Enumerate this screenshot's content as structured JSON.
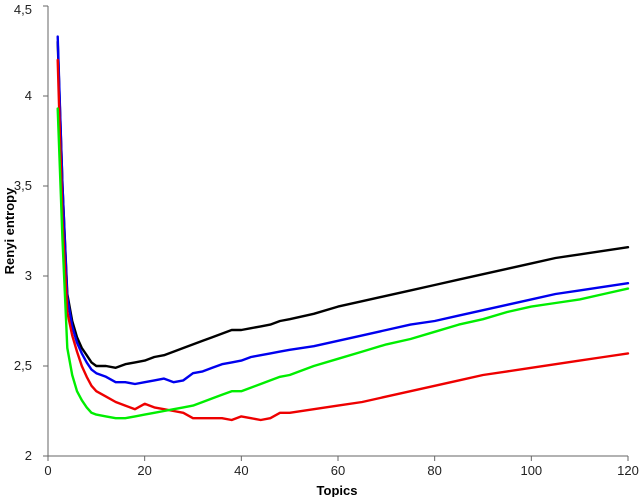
{
  "chart_data": {
    "type": "line",
    "title": "",
    "xlabel": "Topics",
    "ylabel": "Renyi entropy",
    "xlim": [
      0,
      120
    ],
    "ylim": [
      2,
      4.5
    ],
    "xticks": [
      0,
      20,
      40,
      60,
      80,
      100,
      120
    ],
    "xtick_labels": [
      "0",
      "20",
      "40",
      "60",
      "80",
      "100",
      "120"
    ],
    "yticks": [
      2,
      2.5,
      3,
      3.5,
      4,
      4.5
    ],
    "ytick_labels": [
      "2",
      "2,5",
      "3",
      "3,5",
      "4",
      "4,5"
    ],
    "grid": false,
    "legend": "none",
    "series": [
      {
        "color": "#000000",
        "points": [
          [
            2,
            4.3
          ],
          [
            3,
            3.5
          ],
          [
            4,
            2.9
          ],
          [
            5,
            2.75
          ],
          [
            6,
            2.66
          ],
          [
            7,
            2.6
          ],
          [
            8,
            2.56
          ],
          [
            9,
            2.52
          ],
          [
            10,
            2.5
          ],
          [
            12,
            2.5
          ],
          [
            14,
            2.49
          ],
          [
            16,
            2.51
          ],
          [
            18,
            2.52
          ],
          [
            20,
            2.53
          ],
          [
            22,
            2.55
          ],
          [
            24,
            2.56
          ],
          [
            26,
            2.58
          ],
          [
            28,
            2.6
          ],
          [
            30,
            2.62
          ],
          [
            32,
            2.64
          ],
          [
            34,
            2.66
          ],
          [
            36,
            2.68
          ],
          [
            38,
            2.7
          ],
          [
            40,
            2.7
          ],
          [
            42,
            2.71
          ],
          [
            44,
            2.72
          ],
          [
            46,
            2.73
          ],
          [
            48,
            2.75
          ],
          [
            50,
            2.76
          ],
          [
            55,
            2.79
          ],
          [
            60,
            2.83
          ],
          [
            65,
            2.86
          ],
          [
            70,
            2.89
          ],
          [
            75,
            2.92
          ],
          [
            80,
            2.95
          ],
          [
            85,
            2.98
          ],
          [
            90,
            3.01
          ],
          [
            95,
            3.04
          ],
          [
            100,
            3.07
          ],
          [
            105,
            3.1
          ],
          [
            110,
            3.12
          ],
          [
            115,
            3.14
          ],
          [
            120,
            3.16
          ]
        ]
      },
      {
        "color": "#0000ee",
        "points": [
          [
            2,
            4.33
          ],
          [
            3,
            3.5
          ],
          [
            4,
            2.88
          ],
          [
            5,
            2.72
          ],
          [
            6,
            2.63
          ],
          [
            7,
            2.57
          ],
          [
            8,
            2.52
          ],
          [
            9,
            2.48
          ],
          [
            10,
            2.46
          ],
          [
            12,
            2.44
          ],
          [
            14,
            2.41
          ],
          [
            16,
            2.41
          ],
          [
            18,
            2.4
          ],
          [
            20,
            2.41
          ],
          [
            22,
            2.42
          ],
          [
            24,
            2.43
          ],
          [
            26,
            2.41
          ],
          [
            28,
            2.42
          ],
          [
            30,
            2.46
          ],
          [
            32,
            2.47
          ],
          [
            34,
            2.49
          ],
          [
            36,
            2.51
          ],
          [
            38,
            2.52
          ],
          [
            40,
            2.53
          ],
          [
            42,
            2.55
          ],
          [
            44,
            2.56
          ],
          [
            46,
            2.57
          ],
          [
            48,
            2.58
          ],
          [
            50,
            2.59
          ],
          [
            55,
            2.61
          ],
          [
            60,
            2.64
          ],
          [
            65,
            2.67
          ],
          [
            70,
            2.7
          ],
          [
            75,
            2.73
          ],
          [
            80,
            2.75
          ],
          [
            85,
            2.78
          ],
          [
            90,
            2.81
          ],
          [
            95,
            2.84
          ],
          [
            100,
            2.87
          ],
          [
            105,
            2.9
          ],
          [
            110,
            2.92
          ],
          [
            115,
            2.94
          ],
          [
            120,
            2.96
          ]
        ]
      },
      {
        "color": "#ee0000",
        "points": [
          [
            2,
            4.2
          ],
          [
            3,
            3.3
          ],
          [
            4,
            2.8
          ],
          [
            5,
            2.67
          ],
          [
            6,
            2.58
          ],
          [
            7,
            2.5
          ],
          [
            8,
            2.44
          ],
          [
            9,
            2.39
          ],
          [
            10,
            2.36
          ],
          [
            12,
            2.33
          ],
          [
            14,
            2.3
          ],
          [
            16,
            2.28
          ],
          [
            18,
            2.26
          ],
          [
            20,
            2.29
          ],
          [
            22,
            2.27
          ],
          [
            24,
            2.26
          ],
          [
            26,
            2.25
          ],
          [
            28,
            2.24
          ],
          [
            30,
            2.21
          ],
          [
            32,
            2.21
          ],
          [
            34,
            2.21
          ],
          [
            36,
            2.21
          ],
          [
            38,
            2.2
          ],
          [
            40,
            2.22
          ],
          [
            42,
            2.21
          ],
          [
            44,
            2.2
          ],
          [
            46,
            2.21
          ],
          [
            48,
            2.24
          ],
          [
            50,
            2.24
          ],
          [
            55,
            2.26
          ],
          [
            60,
            2.28
          ],
          [
            65,
            2.3
          ],
          [
            70,
            2.33
          ],
          [
            75,
            2.36
          ],
          [
            80,
            2.39
          ],
          [
            85,
            2.42
          ],
          [
            90,
            2.45
          ],
          [
            95,
            2.47
          ],
          [
            100,
            2.49
          ],
          [
            105,
            2.51
          ],
          [
            110,
            2.53
          ],
          [
            115,
            2.55
          ],
          [
            120,
            2.57
          ]
        ]
      },
      {
        "color": "#00ee00",
        "points": [
          [
            2,
            3.93
          ],
          [
            3,
            3.2
          ],
          [
            4,
            2.6
          ],
          [
            5,
            2.45
          ],
          [
            6,
            2.36
          ],
          [
            7,
            2.31
          ],
          [
            8,
            2.27
          ],
          [
            9,
            2.24
          ],
          [
            10,
            2.23
          ],
          [
            12,
            2.22
          ],
          [
            14,
            2.21
          ],
          [
            16,
            2.21
          ],
          [
            18,
            2.22
          ],
          [
            20,
            2.23
          ],
          [
            22,
            2.24
          ],
          [
            24,
            2.25
          ],
          [
            26,
            2.26
          ],
          [
            28,
            2.27
          ],
          [
            30,
            2.28
          ],
          [
            32,
            2.3
          ],
          [
            34,
            2.32
          ],
          [
            36,
            2.34
          ],
          [
            38,
            2.36
          ],
          [
            40,
            2.36
          ],
          [
            42,
            2.38
          ],
          [
            44,
            2.4
          ],
          [
            46,
            2.42
          ],
          [
            48,
            2.44
          ],
          [
            50,
            2.45
          ],
          [
            55,
            2.5
          ],
          [
            60,
            2.54
          ],
          [
            65,
            2.58
          ],
          [
            70,
            2.62
          ],
          [
            75,
            2.65
          ],
          [
            80,
            2.69
          ],
          [
            85,
            2.73
          ],
          [
            90,
            2.76
          ],
          [
            95,
            2.8
          ],
          [
            100,
            2.83
          ],
          [
            105,
            2.85
          ],
          [
            110,
            2.87
          ],
          [
            115,
            2.9
          ],
          [
            120,
            2.93
          ]
        ]
      }
    ]
  }
}
